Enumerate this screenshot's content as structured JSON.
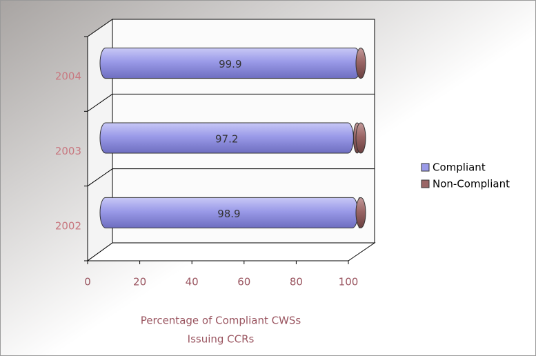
{
  "chart_data": {
    "type": "bar3d_stacked_horizontal",
    "categories": [
      "2004",
      "2003",
      "2002"
    ],
    "series": [
      {
        "name": "Compliant",
        "color": "#9a9ae8",
        "values": [
          99.9,
          97.2,
          98.9
        ]
      },
      {
        "name": "Non-Compliant",
        "color": "#9a6666",
        "values": [
          0.1,
          2.8,
          1.1
        ]
      }
    ],
    "xlim": [
      0,
      100
    ],
    "xticks": [
      0,
      20,
      40,
      60,
      80,
      100
    ],
    "xlabel": [
      "Percentage of Compliant CWSs",
      "Issuing CCRs"
    ],
    "show_value_labels_series": 0,
    "legend": "right",
    "grid": false
  }
}
